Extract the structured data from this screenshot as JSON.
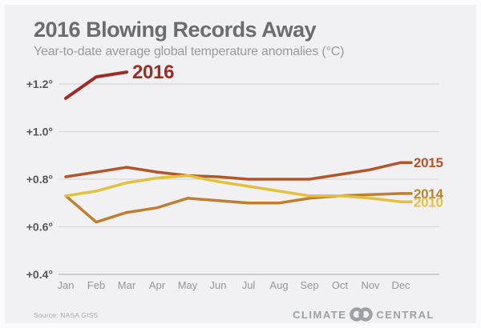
{
  "header": {
    "title": "2016 Blowing Records Away",
    "subtitle": "Year-to-date average global temperature anomalies (°C)"
  },
  "footer": {
    "source": "Source: NASA GISS",
    "logo": {
      "climate": "CLIMATE",
      "central": "CENTRAL"
    }
  },
  "chart_data": {
    "type": "line",
    "title": "2016 Blowing Records Away",
    "subtitle": "Year-to-date average global temperature anomalies (°C)",
    "xlabel": "",
    "ylabel": "",
    "categories": [
      "Jan",
      "Feb",
      "Mar",
      "Apr",
      "May",
      "Jun",
      "Jul",
      "Aug",
      "Sep",
      "Oct",
      "Nov",
      "Dec"
    ],
    "ylim": [
      0.4,
      1.3
    ],
    "grid": "horizontal",
    "legend_position": "end-of-line labels",
    "yticks": [
      {
        "label": "+1.2°",
        "value": 1.2
      },
      {
        "label": "+1.0°",
        "value": 1.0
      },
      {
        "label": "+0.8°",
        "value": 0.8
      },
      {
        "label": "+0.6°",
        "value": 0.6
      },
      {
        "label": "+0.4°",
        "value": 0.4
      }
    ],
    "series": [
      {
        "name": "2016",
        "color": "#9e2b24",
        "values": [
          1.14,
          1.23,
          1.25
        ]
      },
      {
        "name": "2015",
        "color": "#b2562a",
        "values": [
          0.81,
          0.83,
          0.85,
          0.83,
          0.815,
          0.81,
          0.8,
          0.8,
          0.8,
          0.82,
          0.84,
          0.87
        ]
      },
      {
        "name": "2014",
        "color": "#bc8030",
        "values": [
          0.73,
          0.62,
          0.66,
          0.68,
          0.72,
          0.71,
          0.7,
          0.7,
          0.72,
          0.73,
          0.735,
          0.74
        ]
      },
      {
        "name": "2010",
        "color": "#e3c140",
        "values": [
          0.73,
          0.75,
          0.785,
          0.805,
          0.815,
          0.79,
          0.77,
          0.75,
          0.73,
          0.73,
          0.72,
          0.705
        ]
      }
    ],
    "source": "Source: NASA GISS"
  }
}
